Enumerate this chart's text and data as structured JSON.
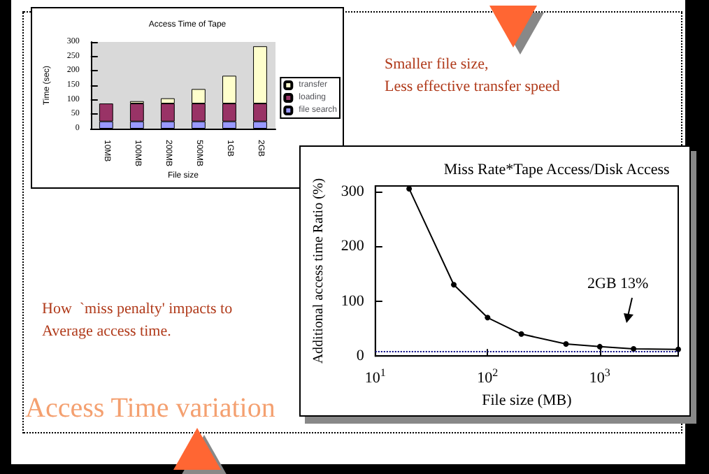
{
  "chart_data": [
    {
      "type": "bar",
      "title": "Access Time of Tape",
      "xlabel": "File size",
      "ylabel": "Time (sec)",
      "categories": [
        "10MB",
        "100MB",
        "200MB",
        "500MB",
        "1GB",
        "2GB"
      ],
      "stacked": true,
      "series": [
        {
          "name": "file search",
          "color": "#9999ff",
          "values": [
            25,
            25,
            25,
            25,
            25,
            25
          ]
        },
        {
          "name": "loading",
          "color": "#993366",
          "values": [
            62,
            62,
            62,
            62,
            62,
            62
          ]
        },
        {
          "name": "transfer",
          "color": "#ffffcc",
          "values": [
            null,
            8,
            18,
            50,
            96,
            198
          ]
        }
      ],
      "ylim": [
        0,
        300
      ],
      "yticks": [
        0,
        50,
        100,
        150,
        200,
        250,
        300
      ],
      "grid": false,
      "legend": "right"
    },
    {
      "type": "line",
      "title": "Miss Rate*Tape Access/Disk Access",
      "xlabel": "File size (MB)",
      "ylabel": "Additional access time Ratio (%)",
      "log": "x",
      "x": [
        20,
        50,
        100,
        200,
        500,
        1000,
        2000,
        5000
      ],
      "series": [
        {
          "color": "#000000",
          "values": [
            305,
            130,
            70,
            40,
            22,
            17,
            13,
            12
          ]
        }
      ],
      "xlim": [
        10,
        5000
      ],
      "xticks": [
        {
          "value": 10,
          "label": "10$^{1}$"
        },
        {
          "value": 100,
          "label": "10$^{2}$"
        },
        {
          "value": 1000,
          "label": "10$^{3}$"
        }
      ],
      "ylim": [
        0,
        310
      ],
      "yticks": [
        0,
        100,
        200,
        300
      ],
      "grid": false,
      "marker": "circle",
      "line_style": "solid",
      "ref_lines": [
        {
          "axis": "y",
          "value": 8,
          "color": "#000080",
          "line_style": "dotted"
        }
      ],
      "annotations": [
        "2GB 13%"
      ]
    },
    {
      "type": "other",
      "title": "Access Time variation",
      "annotations": [
        "Smaller file size,\nLess effective transfer speed",
        "How  `miss penalty' impacts to\nAverage access time."
      ]
    }
  ]
}
